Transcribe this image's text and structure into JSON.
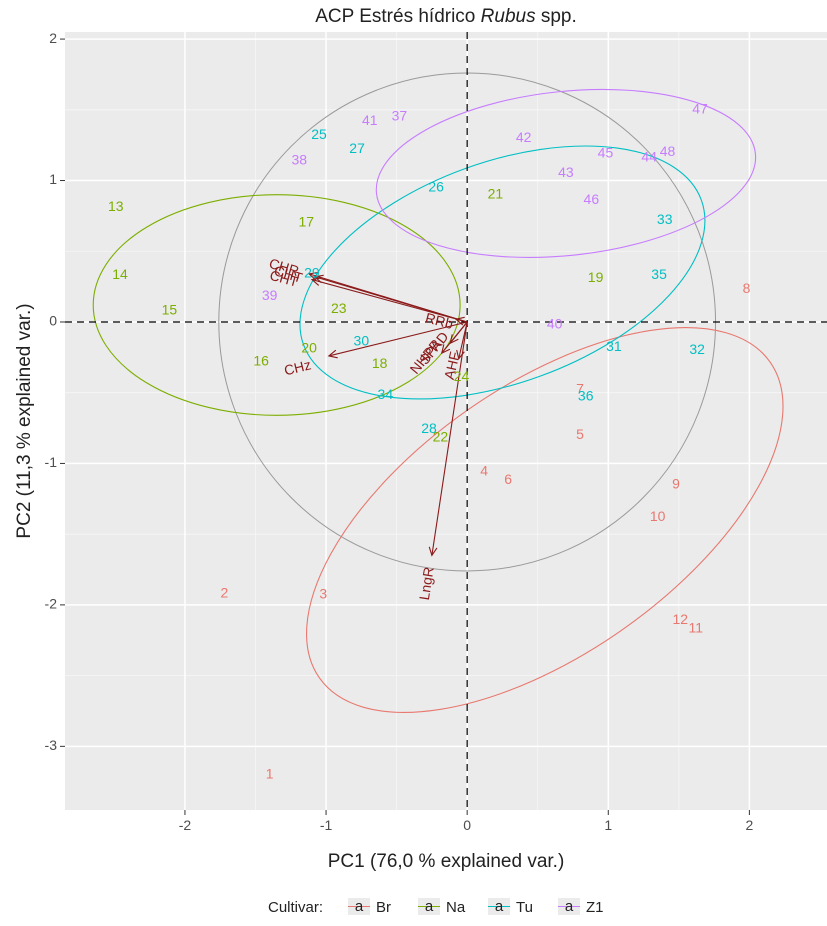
{
  "chart_data": {
    "type": "scatter",
    "title_prefix": "ACP Estrés hídrico ",
    "title_italic": "Rubus",
    "title_suffix": " spp.",
    "xlabel": "PC1 (76,0  % explained var.)",
    "ylabel": "PC2 (11,3 % explained var.)",
    "xlim": [
      -2.85,
      2.55
    ],
    "ylim": [
      -3.45,
      2.05
    ],
    "xticks": [
      -2,
      -1,
      0,
      1,
      2
    ],
    "yticks": [
      -3,
      -2,
      -1,
      0,
      1,
      2
    ],
    "grid": true,
    "legend": {
      "title": "Cultivar:",
      "position": "bottom",
      "key_glyph": "a",
      "entries": [
        "Br",
        "Na",
        "Tu",
        "Z1"
      ]
    },
    "colors": {
      "Br": "#e8786f",
      "Na": "#7cae00",
      "Tu": "#00bfc4",
      "Z1": "#c77cff",
      "arrows": "#8b1a1a",
      "background": "#ebebeb",
      "circle": "#999999"
    },
    "points": [
      {
        "label": "1",
        "group": "Br",
        "x": -1.4,
        "y": -3.2
      },
      {
        "label": "2",
        "group": "Br",
        "x": -1.72,
        "y": -1.92
      },
      {
        "label": "3",
        "group": "Br",
        "x": -1.02,
        "y": -1.93
      },
      {
        "label": "4",
        "group": "Br",
        "x": 0.12,
        "y": -1.06
      },
      {
        "label": "5",
        "group": "Br",
        "x": 0.8,
        "y": -0.8
      },
      {
        "label": "6",
        "group": "Br",
        "x": 0.29,
        "y": -1.12
      },
      {
        "label": "7",
        "group": "Br",
        "x": 0.8,
        "y": -0.48
      },
      {
        "label": "8",
        "group": "Br",
        "x": 1.98,
        "y": 0.23
      },
      {
        "label": "9",
        "group": "Br",
        "x": 1.48,
        "y": -1.15
      },
      {
        "label": "10",
        "group": "Br",
        "x": 1.35,
        "y": -1.38
      },
      {
        "label": "11",
        "group": "Br",
        "x": 1.62,
        "y": -2.17
      },
      {
        "label": "12",
        "group": "Br",
        "x": 1.51,
        "y": -2.11
      },
      {
        "label": "13",
        "group": "Na",
        "x": -2.49,
        "y": 0.81
      },
      {
        "label": "14",
        "group": "Na",
        "x": -2.46,
        "y": 0.33
      },
      {
        "label": "15",
        "group": "Na",
        "x": -2.11,
        "y": 0.08
      },
      {
        "label": "16",
        "group": "Na",
        "x": -1.46,
        "y": -0.28
      },
      {
        "label": "17",
        "group": "Na",
        "x": -1.14,
        "y": 0.7
      },
      {
        "label": "18",
        "group": "Na",
        "x": -0.62,
        "y": -0.3
      },
      {
        "label": "19",
        "group": "Na",
        "x": 0.91,
        "y": 0.31
      },
      {
        "label": "20",
        "group": "Na",
        "x": -1.12,
        "y": -0.19
      },
      {
        "label": "21",
        "group": "Na",
        "x": 0.2,
        "y": 0.9
      },
      {
        "label": "22",
        "group": "Na",
        "x": -0.19,
        "y": -0.82
      },
      {
        "label": "23",
        "group": "Na",
        "x": -0.91,
        "y": 0.09
      },
      {
        "label": "24",
        "group": "Na",
        "x": -0.04,
        "y": -0.39
      },
      {
        "label": "25",
        "group": "Tu",
        "x": -1.05,
        "y": 1.32
      },
      {
        "label": "26",
        "group": "Tu",
        "x": -0.22,
        "y": 0.95
      },
      {
        "label": "27",
        "group": "Tu",
        "x": -0.78,
        "y": 1.22
      },
      {
        "label": "28",
        "group": "Tu",
        "x": -0.27,
        "y": -0.76
      },
      {
        "label": "29",
        "group": "Tu",
        "x": -1.1,
        "y": 0.34
      },
      {
        "label": "30",
        "group": "Tu",
        "x": -0.75,
        "y": -0.14
      },
      {
        "label": "31",
        "group": "Tu",
        "x": 1.04,
        "y": -0.18
      },
      {
        "label": "32",
        "group": "Tu",
        "x": 1.63,
        "y": -0.2
      },
      {
        "label": "33",
        "group": "Tu",
        "x": 1.4,
        "y": 0.72
      },
      {
        "label": "34",
        "group": "Tu",
        "x": -0.58,
        "y": -0.52
      },
      {
        "label": "35",
        "group": "Tu",
        "x": 1.36,
        "y": 0.33
      },
      {
        "label": "36",
        "group": "Tu",
        "x": 0.84,
        "y": -0.53
      },
      {
        "label": "37",
        "group": "Z1",
        "x": -0.48,
        "y": 1.45
      },
      {
        "label": "38",
        "group": "Z1",
        "x": -1.19,
        "y": 1.14
      },
      {
        "label": "39",
        "group": "Z1",
        "x": -1.4,
        "y": 0.18
      },
      {
        "label": "40",
        "group": "Z1",
        "x": 0.62,
        "y": -0.02
      },
      {
        "label": "41",
        "group": "Z1",
        "x": -0.69,
        "y": 1.42
      },
      {
        "label": "42",
        "group": "Z1",
        "x": 0.4,
        "y": 1.3
      },
      {
        "label": "43",
        "group": "Z1",
        "x": 0.7,
        "y": 1.05
      },
      {
        "label": "44",
        "group": "Z1",
        "x": 1.29,
        "y": 1.16
      },
      {
        "label": "45",
        "group": "Z1",
        "x": 0.98,
        "y": 1.19
      },
      {
        "label": "46",
        "group": "Z1",
        "x": 0.88,
        "y": 0.86
      },
      {
        "label": "47",
        "group": "Z1",
        "x": 1.65,
        "y": 1.5
      },
      {
        "label": "48",
        "group": "Z1",
        "x": 1.42,
        "y": 1.2
      }
    ],
    "ellipses": [
      {
        "group": "Br",
        "cx": 0.55,
        "cy": -1.4,
        "rx": 1.95,
        "ry": 0.95,
        "angle": -35
      },
      {
        "group": "Na",
        "cx": -1.35,
        "cy": 0.12,
        "rx": 1.3,
        "ry": 0.78,
        "angle": 0
      },
      {
        "group": "Tu",
        "cx": 0.25,
        "cy": 0.35,
        "rx": 1.5,
        "ry": 0.78,
        "angle": -20
      },
      {
        "group": "Z1",
        "cx": 0.7,
        "cy": 1.05,
        "rx": 1.35,
        "ry": 0.58,
        "angle": -6
      }
    ],
    "correlation_circle": {
      "cx": 0.0,
      "cy": 0.0,
      "r": 1.76
    },
    "variables": [
      {
        "label": "CHR",
        "x": -1.12,
        "y": 0.34,
        "lx": -1.3,
        "ly": 0.38
      },
      {
        "label": "CHT",
        "x": -1.1,
        "y": 0.3,
        "lx": -1.3,
        "ly": 0.3
      },
      {
        "label": "CHT",
        "x": -1.08,
        "y": 0.32,
        "lx": -1.27,
        "ly": 0.33
      },
      {
        "label": "CHz",
        "x": -0.98,
        "y": -0.24,
        "lx": -1.2,
        "ly": -0.33
      },
      {
        "label": "RRb",
        "x": -0.08,
        "y": 0.02,
        "lx": -0.2,
        "ly": 0.0
      },
      {
        "label": "NHPR",
        "x": -0.18,
        "y": -0.22,
        "lx": -0.29,
        "ly": -0.25
      },
      {
        "label": "SPAD",
        "x": -0.12,
        "y": -0.15,
        "lx": -0.23,
        "ly": -0.19
      },
      {
        "label": "AHF",
        "x": -0.06,
        "y": -0.26,
        "lx": -0.1,
        "ly": -0.31
      },
      {
        "label": "LngR",
        "x": -0.25,
        "y": -1.65,
        "lx": -0.28,
        "ly": -1.85
      }
    ]
  }
}
